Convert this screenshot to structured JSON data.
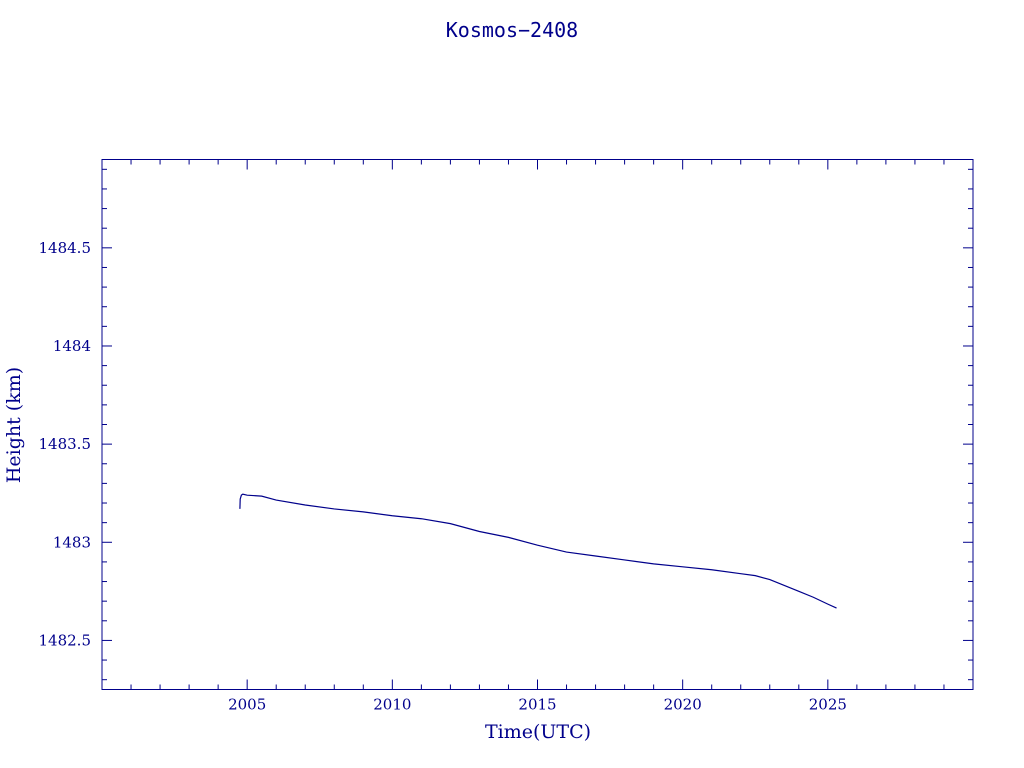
{
  "chart_data": {
    "type": "line",
    "title": "Kosmos−2408",
    "xlabel": "Time(UTC)",
    "ylabel": "Height (km)",
    "xlim": [
      2000.0,
      2030.0
    ],
    "ylim": [
      1482.25,
      1484.95
    ],
    "x_ticks": [
      2005,
      2010,
      2015,
      2020,
      2025
    ],
    "x_tick_labels": [
      "2005",
      "2010",
      "2015",
      "2020",
      "2025"
    ],
    "x_minor_step": 1,
    "y_ticks": [
      1482.5,
      1483,
      1483.5,
      1484,
      1484.5
    ],
    "y_tick_labels": [
      "1482.5",
      "1483",
      "1483.5",
      "1484",
      "1484.5"
    ],
    "y_minor_step": 0.1,
    "grid": false,
    "legend": "none",
    "color": "#00008b",
    "series": [
      {
        "x": [
          2004.75,
          2004.76,
          2004.8,
          2004.85,
          2005.0,
          2005.5,
          2006.0,
          2007.0,
          2008.0,
          2009.0,
          2010.0,
          2011.0,
          2012.0,
          2013.0,
          2014.0,
          2015.0,
          2016.0,
          2017.0,
          2018.0,
          2019.0,
          2020.0,
          2021.0,
          2022.0,
          2022.5,
          2023.0,
          2023.5,
          2024.0,
          2024.5,
          2025.0,
          2025.3
        ],
        "y": [
          1483.17,
          1483.22,
          1483.24,
          1483.245,
          1483.24,
          1483.235,
          1483.215,
          1483.19,
          1483.17,
          1483.155,
          1483.135,
          1483.12,
          1483.095,
          1483.055,
          1483.025,
          1482.985,
          1482.95,
          1482.93,
          1482.91,
          1482.89,
          1482.875,
          1482.86,
          1482.84,
          1482.83,
          1482.81,
          1482.78,
          1482.75,
          1482.72,
          1482.685,
          1482.665
        ]
      }
    ]
  }
}
